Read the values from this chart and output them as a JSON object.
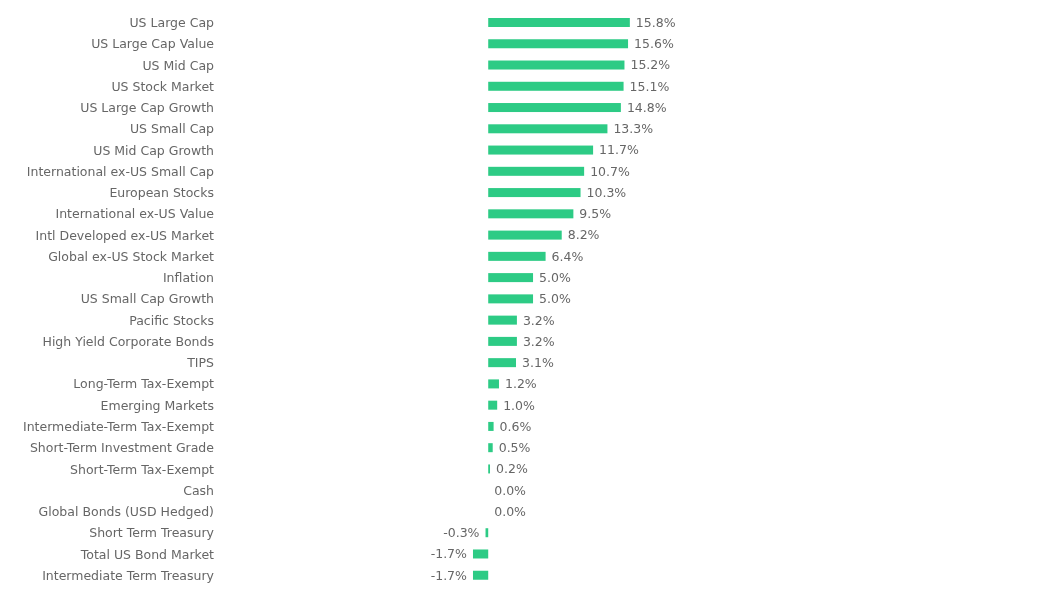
{
  "chart_data": {
    "type": "bar",
    "orientation": "horizontal",
    "categories": [
      "US Large Cap",
      "US Large Cap Value",
      "US Mid Cap",
      "US Stock Market",
      "US Large Cap Growth",
      "US Small Cap",
      "US Mid Cap Growth",
      "International ex-US Small Cap",
      "European Stocks",
      "International ex-US Value",
      "Intl Developed ex-US Market",
      "Global ex-US Stock Market",
      "Inflation",
      "US Small Cap Growth",
      "Pacific Stocks",
      "High Yield Corporate Bonds",
      "TIPS",
      "Long-Term Tax-Exempt",
      "Emerging Markets",
      "Intermediate-Term Tax-Exempt",
      "Short-Term Investment Grade",
      "Short-Term Tax-Exempt",
      "Cash",
      "Global Bonds (USD Hedged)",
      "Short Term Treasury",
      "Total US Bond Market",
      "Intermediate Term Treasury"
    ],
    "values": [
      15.8,
      15.6,
      15.2,
      15.1,
      14.8,
      13.3,
      11.7,
      10.7,
      10.3,
      9.5,
      8.2,
      6.4,
      5.0,
      5.0,
      3.2,
      3.2,
      3.1,
      1.2,
      1.0,
      0.6,
      0.5,
      0.2,
      0.0,
      0.0,
      -0.3,
      -1.7,
      -1.7
    ],
    "value_labels": [
      "15.8%",
      "15.6%",
      "15.2%",
      "15.1%",
      "14.8%",
      "13.3%",
      "11.7%",
      "10.7%",
      "10.3%",
      "9.5%",
      "8.2%",
      "6.4%",
      "5.0%",
      "5.0%",
      "3.2%",
      "3.2%",
      "3.1%",
      "1.2%",
      "1.0%",
      "0.6%",
      "0.5%",
      "0.2%",
      "0.0%",
      "0.0%",
      "-0.3%",
      "-1.7%",
      "-1.7%"
    ],
    "color": "#2dcb85",
    "tick_labels": "y"
  }
}
